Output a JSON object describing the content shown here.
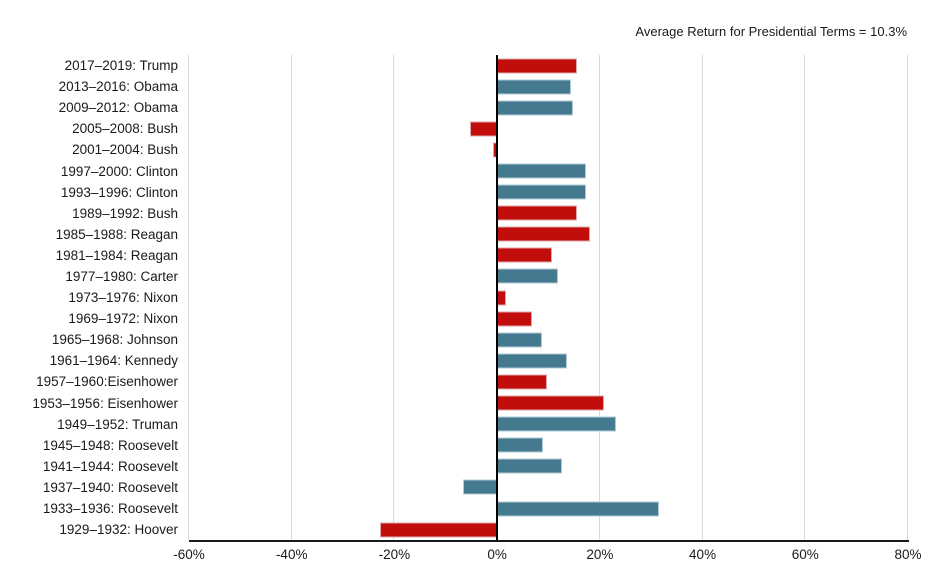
{
  "header": {
    "title": "Average Return for Presidential Terms = 10.3%"
  },
  "chart_data": {
    "type": "bar",
    "orientation": "horizontal",
    "title": "Average Return for Presidential Terms = 10.3%",
    "average_return_pct": 10.3,
    "xlabel": "",
    "ylabel": "",
    "xlim": [
      -60,
      80
    ],
    "x_ticks": [
      -60,
      -40,
      -20,
      0,
      20,
      40,
      60,
      80
    ],
    "x_tick_labels": [
      "-60%",
      "-40%",
      "-20%",
      "0%",
      "20%",
      "40%",
      "60%",
      "80%"
    ],
    "grid": true,
    "legend_position": "none",
    "party_colors": {
      "republican": "#c20d0d",
      "democrat": "#44798f"
    },
    "bars": [
      {
        "label": "2017–2019: Trump",
        "value": 15.5,
        "party": "republican"
      },
      {
        "label": "2013–2016: Obama",
        "value": 14.4,
        "party": "democrat"
      },
      {
        "label": "2009–2012: Obama",
        "value": 14.8,
        "party": "democrat"
      },
      {
        "label": "2005–2008: Bush",
        "value": -5.2,
        "party": "republican"
      },
      {
        "label": "2001–2004: Bush",
        "value": -0.8,
        "party": "republican"
      },
      {
        "label": "1997–2000: Clinton",
        "value": 17.3,
        "party": "democrat"
      },
      {
        "label": "1993–1996: Clinton",
        "value": 17.3,
        "party": "democrat"
      },
      {
        "label": "1989–1992: Bush",
        "value": 15.6,
        "party": "republican"
      },
      {
        "label": "1985–1988: Reagan",
        "value": 18.0,
        "party": "republican"
      },
      {
        "label": "1981–1984: Reagan",
        "value": 10.7,
        "party": "republican"
      },
      {
        "label": "1977–1980: Carter",
        "value": 11.8,
        "party": "democrat"
      },
      {
        "label": "1973–1976: Nixon",
        "value": 1.8,
        "party": "republican"
      },
      {
        "label": "1969–1972: Nixon",
        "value": 6.7,
        "party": "republican"
      },
      {
        "label": "1965–1968: Johnson",
        "value": 8.7,
        "party": "democrat"
      },
      {
        "label": "1961–1964: Kennedy",
        "value": 13.6,
        "party": "democrat"
      },
      {
        "label": "1957–1960:Eisenhower",
        "value": 9.7,
        "party": "republican"
      },
      {
        "label": "1953–1956: Eisenhower",
        "value": 20.9,
        "party": "republican"
      },
      {
        "label": "1949–1952: Truman",
        "value": 23.2,
        "party": "democrat"
      },
      {
        "label": "1945–1948: Roosevelt",
        "value": 8.9,
        "party": "democrat"
      },
      {
        "label": "1941–1944: Roosevelt",
        "value": 12.7,
        "party": "democrat"
      },
      {
        "label": "1937–1940: Roosevelt",
        "value": -6.6,
        "party": "democrat"
      },
      {
        "label": "1933–1936: Roosevelt",
        "value": 31.6,
        "party": "democrat"
      },
      {
        "label": "1929–1932: Hoover",
        "value": -22.8,
        "party": "republican"
      }
    ]
  }
}
